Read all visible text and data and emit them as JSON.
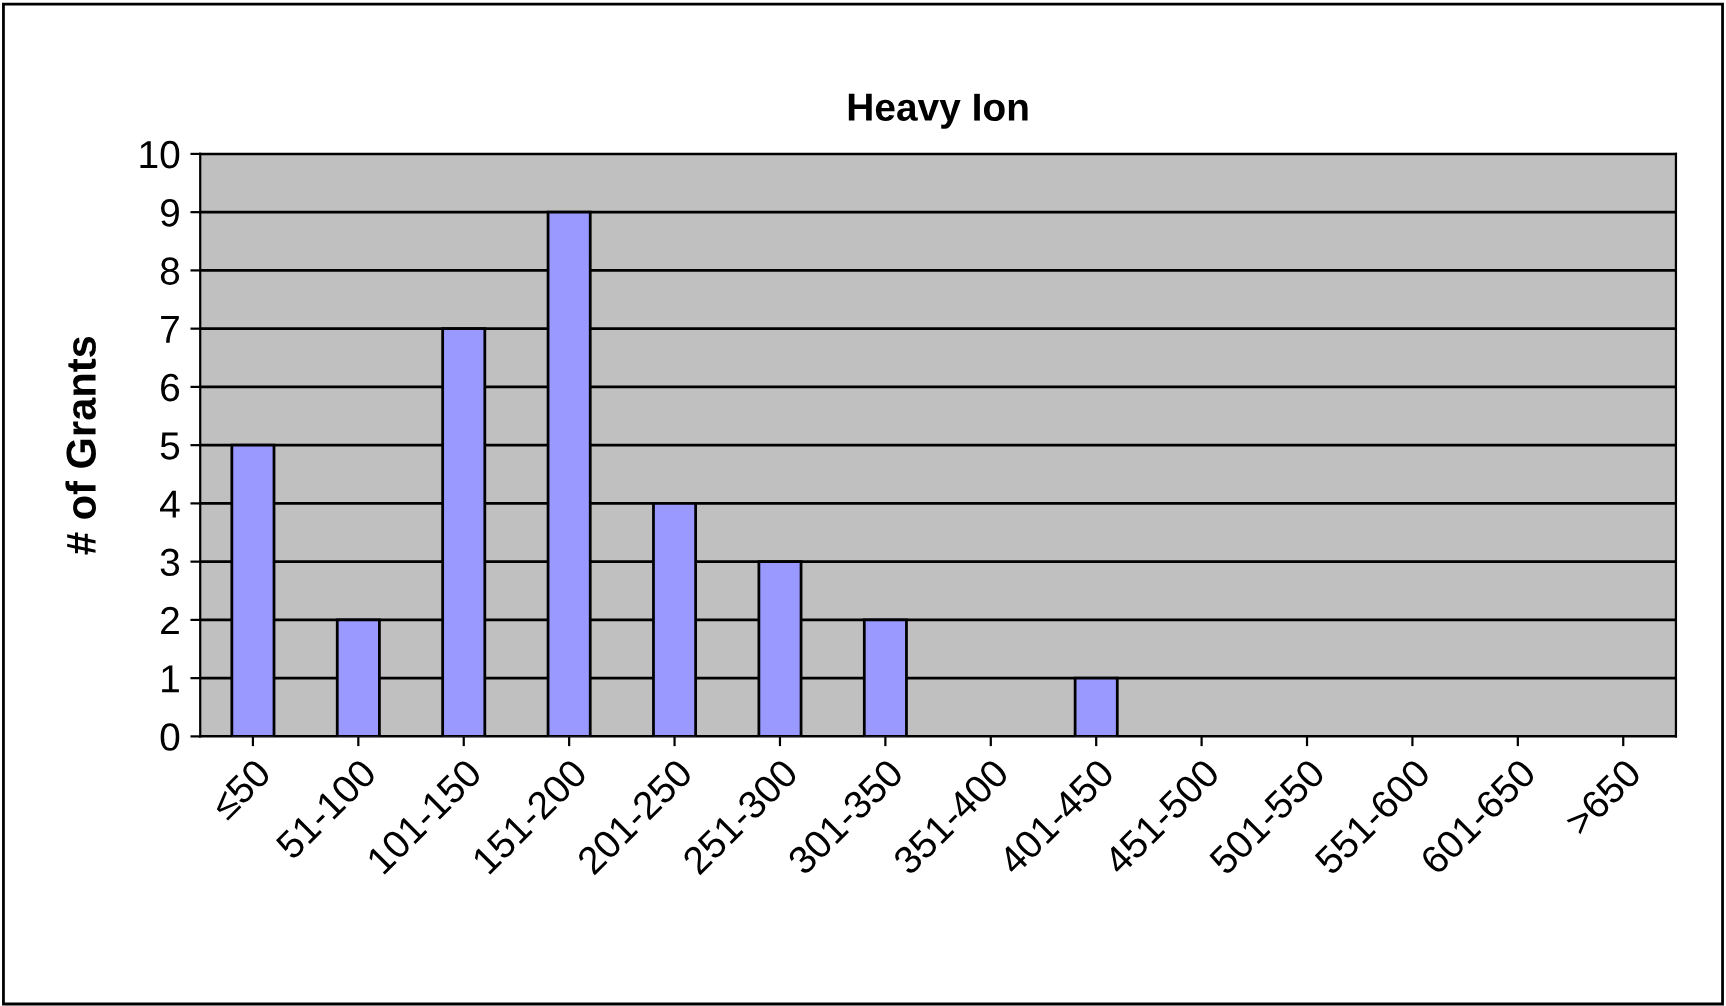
{
  "chart_data": {
    "type": "bar",
    "title": "Heavy Ion",
    "ylabel": "# of Grants",
    "categories": [
      "≤50",
      "51-100",
      "101-150",
      "151-200",
      "201-250",
      "251-300",
      "301-350",
      "351-400",
      "401-450",
      "451-500",
      "501-550",
      "551-600",
      "601-650",
      ">650"
    ],
    "values": [
      5,
      2,
      7,
      9,
      4,
      3,
      2,
      0,
      1,
      0,
      0,
      0,
      0,
      0
    ],
    "color": "#9999ff",
    "ylim": [
      0,
      10
    ],
    "yticks": [
      0,
      1,
      2,
      3,
      4,
      5,
      6,
      7,
      8,
      9,
      10
    ],
    "grid": "y",
    "legend": false
  }
}
